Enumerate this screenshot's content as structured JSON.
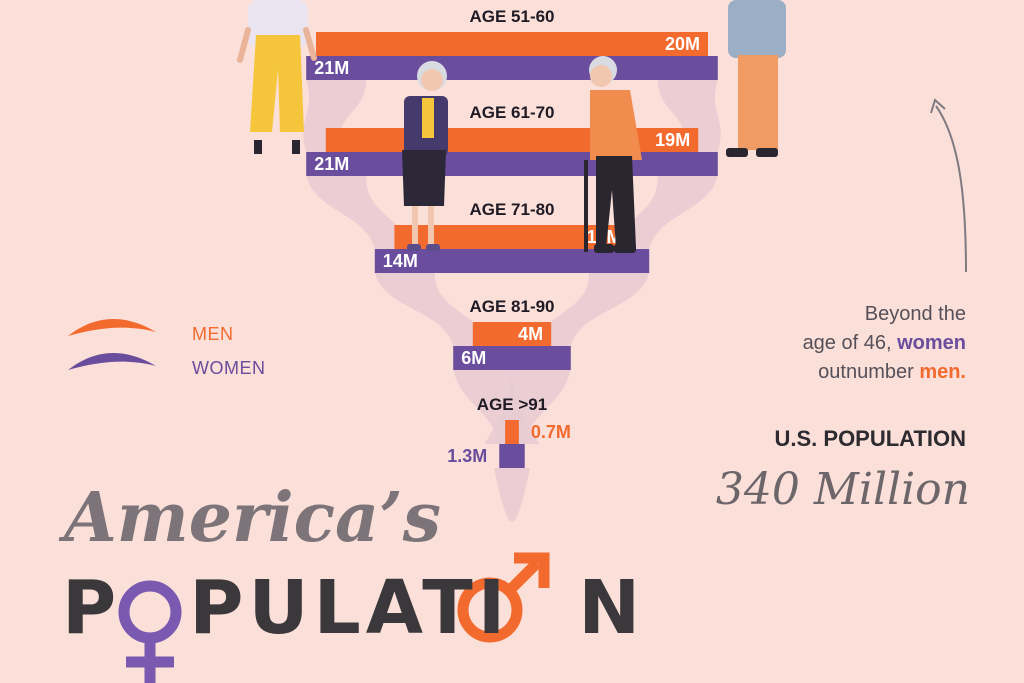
{
  "colors": {
    "background": "#fbdfd9",
    "men": "#f26a2e",
    "women": "#6a4d9c",
    "flow": "#e8cbd2"
  },
  "legend": {
    "men_label": "MEN",
    "women_label": "WOMEN"
  },
  "note": {
    "line1": "Beyond the",
    "line2_pre": "age of 46, ",
    "line2_em": "women",
    "line3_pre": "outnumber ",
    "line3_em": "men."
  },
  "us_population": {
    "label": "U.S. POPULATION",
    "value": "340 Million"
  },
  "title": {
    "line1": "America’s",
    "line2_left": "P",
    "line2_right": "PULATI",
    "line2_end": "N"
  },
  "chart_data": {
    "type": "bar",
    "orientation": "horizontal-butterfly",
    "categories": [
      "AGE 51-60",
      "AGE 61-70",
      "AGE 71-80",
      "AGE 81-90",
      "AGE >91"
    ],
    "unit": "millions",
    "series": [
      {
        "name": "MEN",
        "values": [
          20,
          19,
          12,
          4,
          0.7
        ],
        "labels": [
          "20M",
          "19M",
          "12M",
          "4M",
          "0.7M"
        ]
      },
      {
        "name": "WOMEN",
        "values": [
          21,
          21,
          14,
          6,
          1.3
        ],
        "labels": [
          "21M",
          "21M",
          "14M",
          "6M",
          "1.3M"
        ]
      }
    ]
  }
}
